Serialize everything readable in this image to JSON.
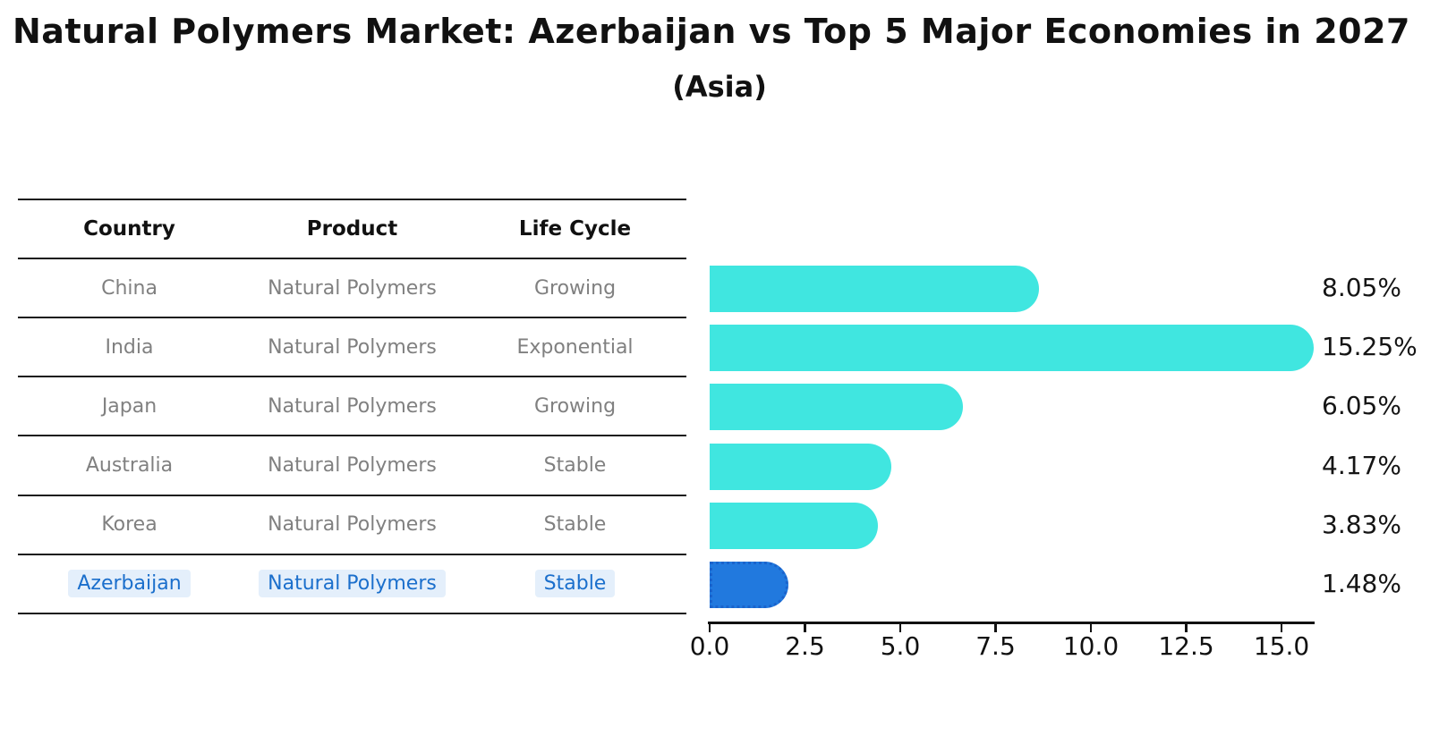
{
  "header": {
    "title": "Natural Polymers Market: Azerbaijan vs Top 5 Major Economies in 2027",
    "subtitle": "(Asia)"
  },
  "table": {
    "columns": [
      "Country",
      "Product",
      "Life Cycle"
    ],
    "rows": [
      {
        "country": "China",
        "product": "Natural Polymers",
        "life_cycle": "Growing",
        "highlighted": false
      },
      {
        "country": "India",
        "product": "Natural Polymers",
        "life_cycle": "Exponential",
        "highlighted": false
      },
      {
        "country": "Japan",
        "product": "Natural Polymers",
        "life_cycle": "Growing",
        "highlighted": false
      },
      {
        "country": "Australia",
        "product": "Natural Polymers",
        "life_cycle": "Stable",
        "highlighted": false
      },
      {
        "country": "Korea",
        "product": "Natural Polymers",
        "life_cycle": "Stable",
        "highlighted": false
      },
      {
        "country": "Azerbaijan",
        "product": "Natural Polymers",
        "life_cycle": "Stable",
        "highlighted": true
      }
    ]
  },
  "chart_data": {
    "type": "bar",
    "orientation": "horizontal",
    "title": "Natural Polymers Market: Azerbaijan vs Top 5 Major Economies in 2027",
    "subtitle": "(Asia)",
    "categories": [
      "China",
      "India",
      "Japan",
      "Australia",
      "Korea",
      "Azerbaijan"
    ],
    "values": [
      8.05,
      15.25,
      6.05,
      4.17,
      3.83,
      1.48
    ],
    "value_labels": [
      "8.05%",
      "15.25%",
      "6.05%",
      "4.17%",
      "3.83%",
      "1.48%"
    ],
    "xlim": [
      0,
      16
    ],
    "x_ticks": [
      0.0,
      2.5,
      5.0,
      7.5,
      10.0,
      12.5,
      15.0
    ],
    "x_tick_labels": [
      "0.0",
      "2.5",
      "5.0",
      "7.5",
      "10.0",
      "12.5",
      "15.0"
    ],
    "grid": false,
    "legend": "none",
    "bar_color": "#40E6E0",
    "highlight_bar_color": "#2179DE",
    "highlight_index": 5
  },
  "colors": {
    "text_primary": "#111111",
    "table_row_text": "#808080",
    "highlight_text": "#1B6FCC",
    "highlight_text_bg": "#E4EFFB",
    "axis": "#111111",
    "background": "#ffffff"
  }
}
